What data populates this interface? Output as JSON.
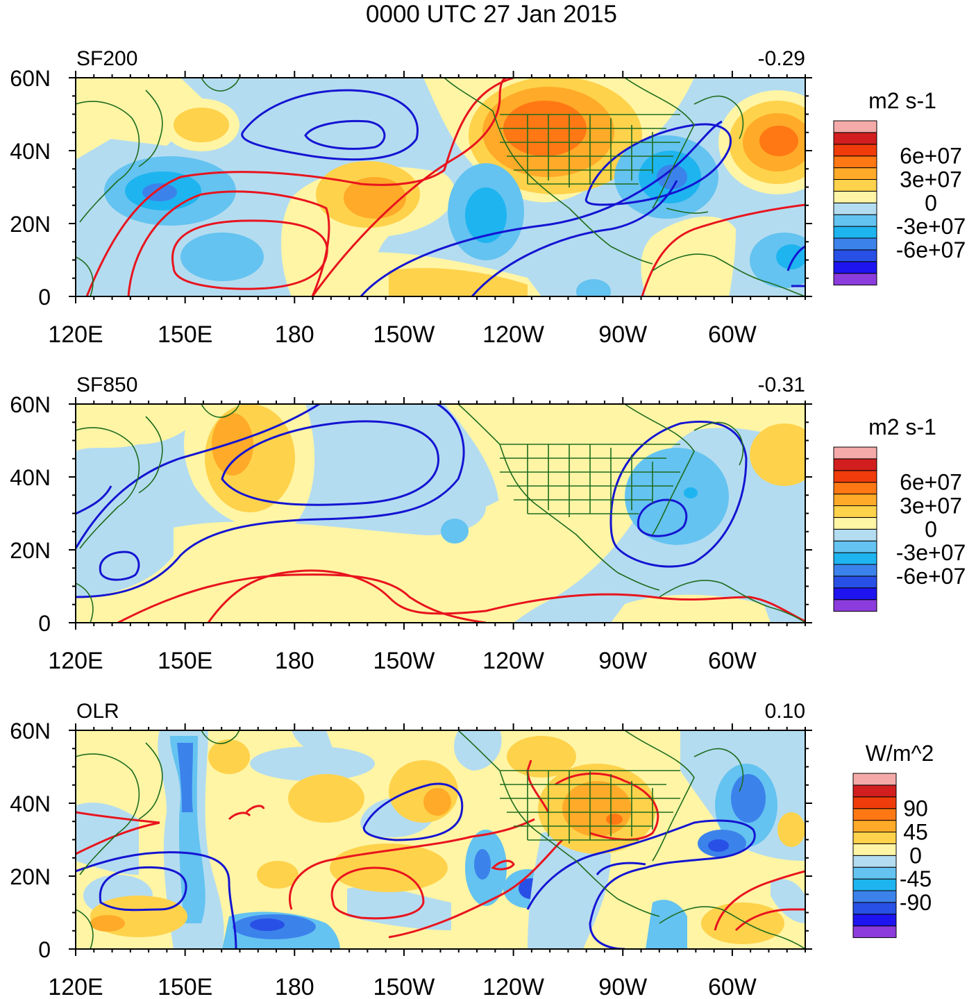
{
  "title": "0000 UTC 27 Jan 2015",
  "colors": {
    "land": "#1e6b1e",
    "positive_contour": "#e8141e",
    "negative_contour": "#1414d2",
    "palette": [
      "#8c3cdc",
      "#1e14f0",
      "#2850e6",
      "#3c82eb",
      "#1eb4f0",
      "#64c3f0",
      "#b4dcf0",
      "#fff5a5",
      "#ffd24b",
      "#ffaa28",
      "#ff7814",
      "#f03c0a",
      "#d21e1e",
      "#f5aaaa"
    ]
  },
  "axes": {
    "x_ticks": [
      "120E",
      "150E",
      "180",
      "150W",
      "120W",
      "90W",
      "60W"
    ],
    "y_ticks": [
      "60N",
      "40N",
      "20N",
      "0"
    ]
  },
  "panels": [
    {
      "name": "SF200",
      "label": "SF200",
      "correlation": "-0.29",
      "units": "m2 s-1",
      "colorbar_labels": [
        "6e+07",
        "3e+07",
        "0",
        "-3e+07",
        "-6e+07"
      ]
    },
    {
      "name": "SF850",
      "label": "SF850",
      "correlation": "-0.31",
      "units": "m2 s-1",
      "colorbar_labels": [
        "6e+07",
        "3e+07",
        "0",
        "-3e+07",
        "-6e+07"
      ]
    },
    {
      "name": "OLR",
      "label": "OLR",
      "correlation": "0.10",
      "units": "W/m^2",
      "colorbar_labels": [
        "90",
        "45",
        "0",
        "-45",
        "-90"
      ]
    }
  ]
}
